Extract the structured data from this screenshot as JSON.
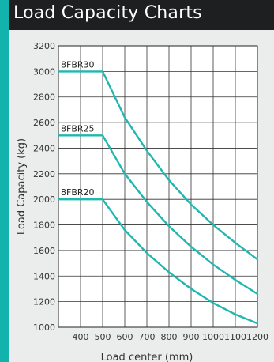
{
  "header": {
    "title": "Load Capacity Charts"
  },
  "colors": {
    "accent": "#12b3ad",
    "title_bg": "#1e1f20",
    "line": "#1fb7b0"
  },
  "chart_data": {
    "type": "line",
    "title": "",
    "xlabel": "Load center (mm)",
    "ylabel": "Load Capacity (kg)",
    "xlim": [
      300,
      1200
    ],
    "ylim": [
      1000,
      3200
    ],
    "xticks": [
      400,
      500,
      600,
      700,
      800,
      900,
      1000,
      1100,
      1200
    ],
    "yticks": [
      1000,
      1200,
      1400,
      1600,
      1800,
      2000,
      2200,
      2400,
      2600,
      2800,
      3000,
      3200
    ],
    "grid": true,
    "series": [
      {
        "name": "8FBR30",
        "x": [
          300,
          500,
          600,
          700,
          800,
          900,
          1000,
          1100,
          1200
        ],
        "y": [
          3000,
          3000,
          2640,
          2380,
          2150,
          1960,
          1800,
          1660,
          1530
        ]
      },
      {
        "name": "8FBR25",
        "x": [
          300,
          500,
          600,
          700,
          800,
          900,
          1000,
          1100,
          1200
        ],
        "y": [
          2500,
          2500,
          2200,
          1980,
          1790,
          1630,
          1490,
          1370,
          1260
        ]
      },
      {
        "name": "8FBR20",
        "x": [
          300,
          500,
          600,
          700,
          800,
          900,
          1000,
          1100,
          1200
        ],
        "y": [
          2000,
          2000,
          1760,
          1580,
          1430,
          1300,
          1190,
          1100,
          1030
        ]
      }
    ]
  }
}
